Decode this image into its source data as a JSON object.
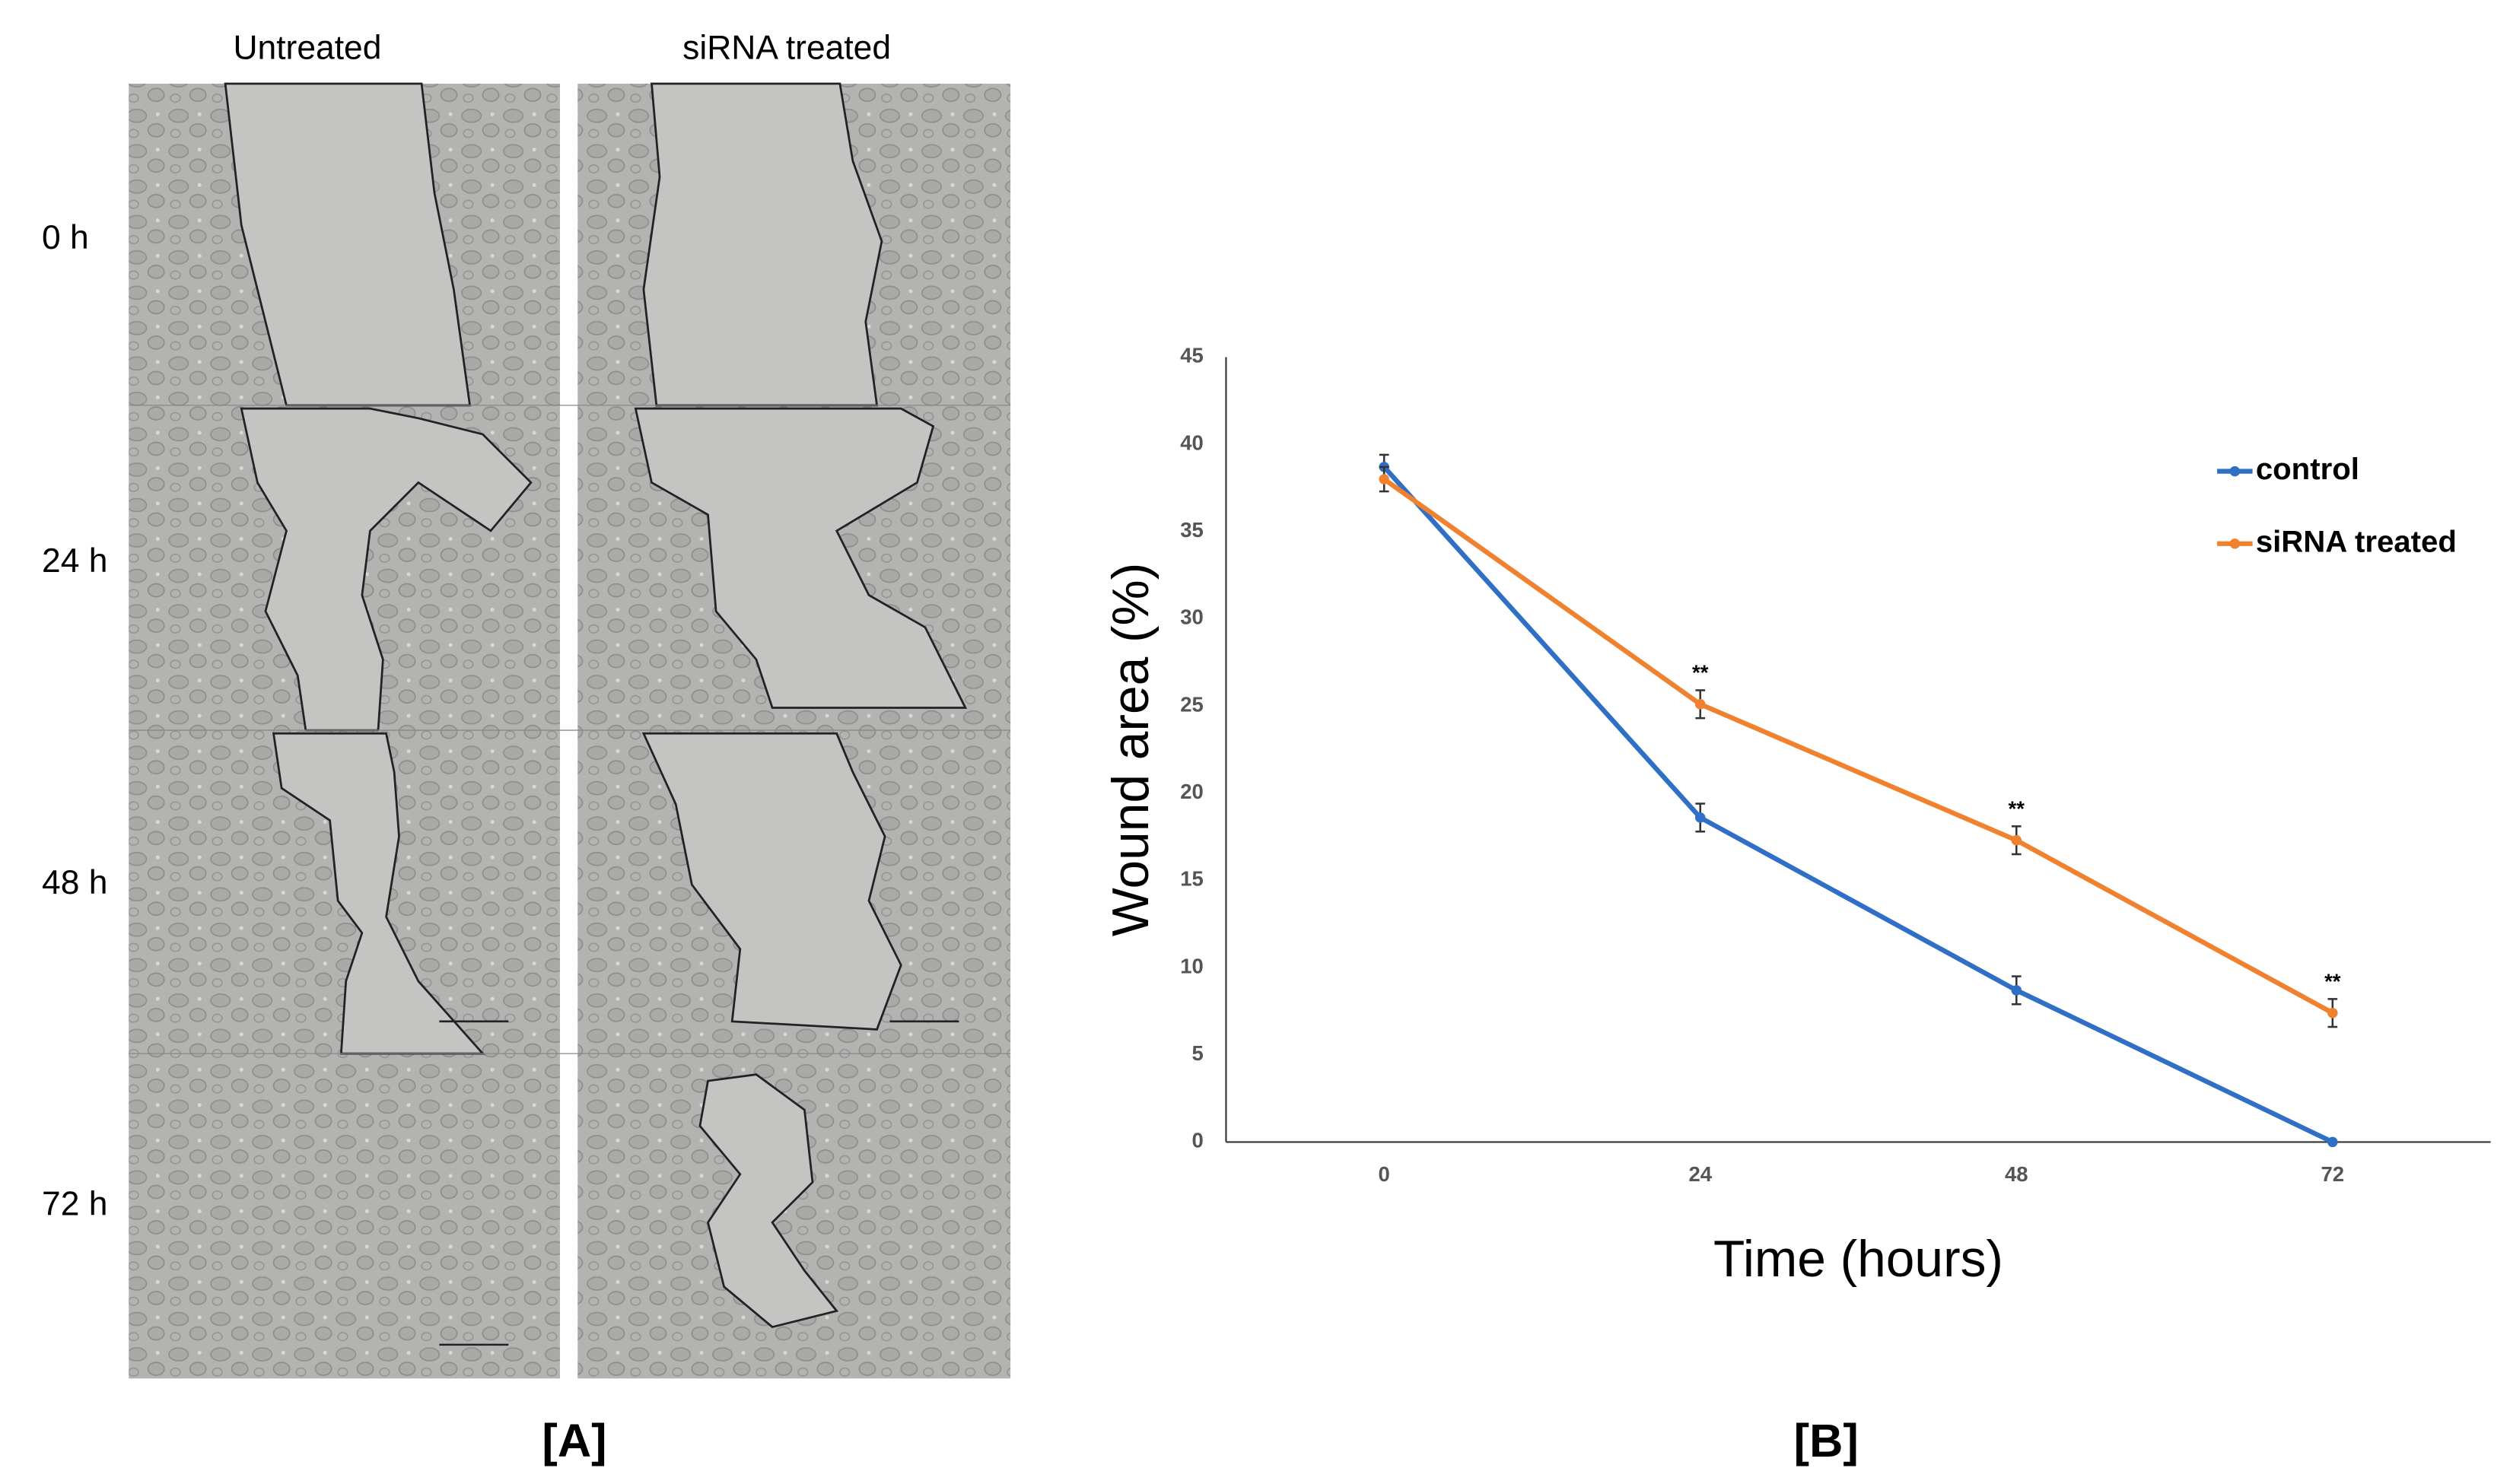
{
  "panel_a": {
    "columns": [
      "Untreated",
      "siRNA treated"
    ],
    "rows": [
      "0 h",
      "24 h",
      "48 h",
      "72 h"
    ],
    "label": "[A]"
  },
  "chart_data": {
    "type": "line",
    "panel_label": "[B]",
    "xlabel": "Time (hours)",
    "ylabel": "Wound area (%)",
    "categories": [
      "0",
      "24",
      "48",
      "72"
    ],
    "series": [
      {
        "name": "control",
        "color": "#2f6fc6",
        "values": [
          38.7,
          18.6,
          8.7,
          0
        ],
        "errors": [
          0.7,
          0.8,
          0.8,
          0
        ]
      },
      {
        "name": "siRNA treated",
        "color": "#f0822f",
        "values": [
          38.0,
          25.1,
          17.3,
          7.4
        ],
        "errors": [
          0.7,
          0.8,
          0.8,
          0.8
        ],
        "annotations": [
          null,
          "**",
          "**",
          "**"
        ]
      }
    ],
    "ylim": [
      0,
      45
    ],
    "yticks": [
      0,
      5,
      10,
      15,
      20,
      25,
      30,
      35,
      40,
      45
    ],
    "grid": false,
    "legend": "upper right"
  }
}
